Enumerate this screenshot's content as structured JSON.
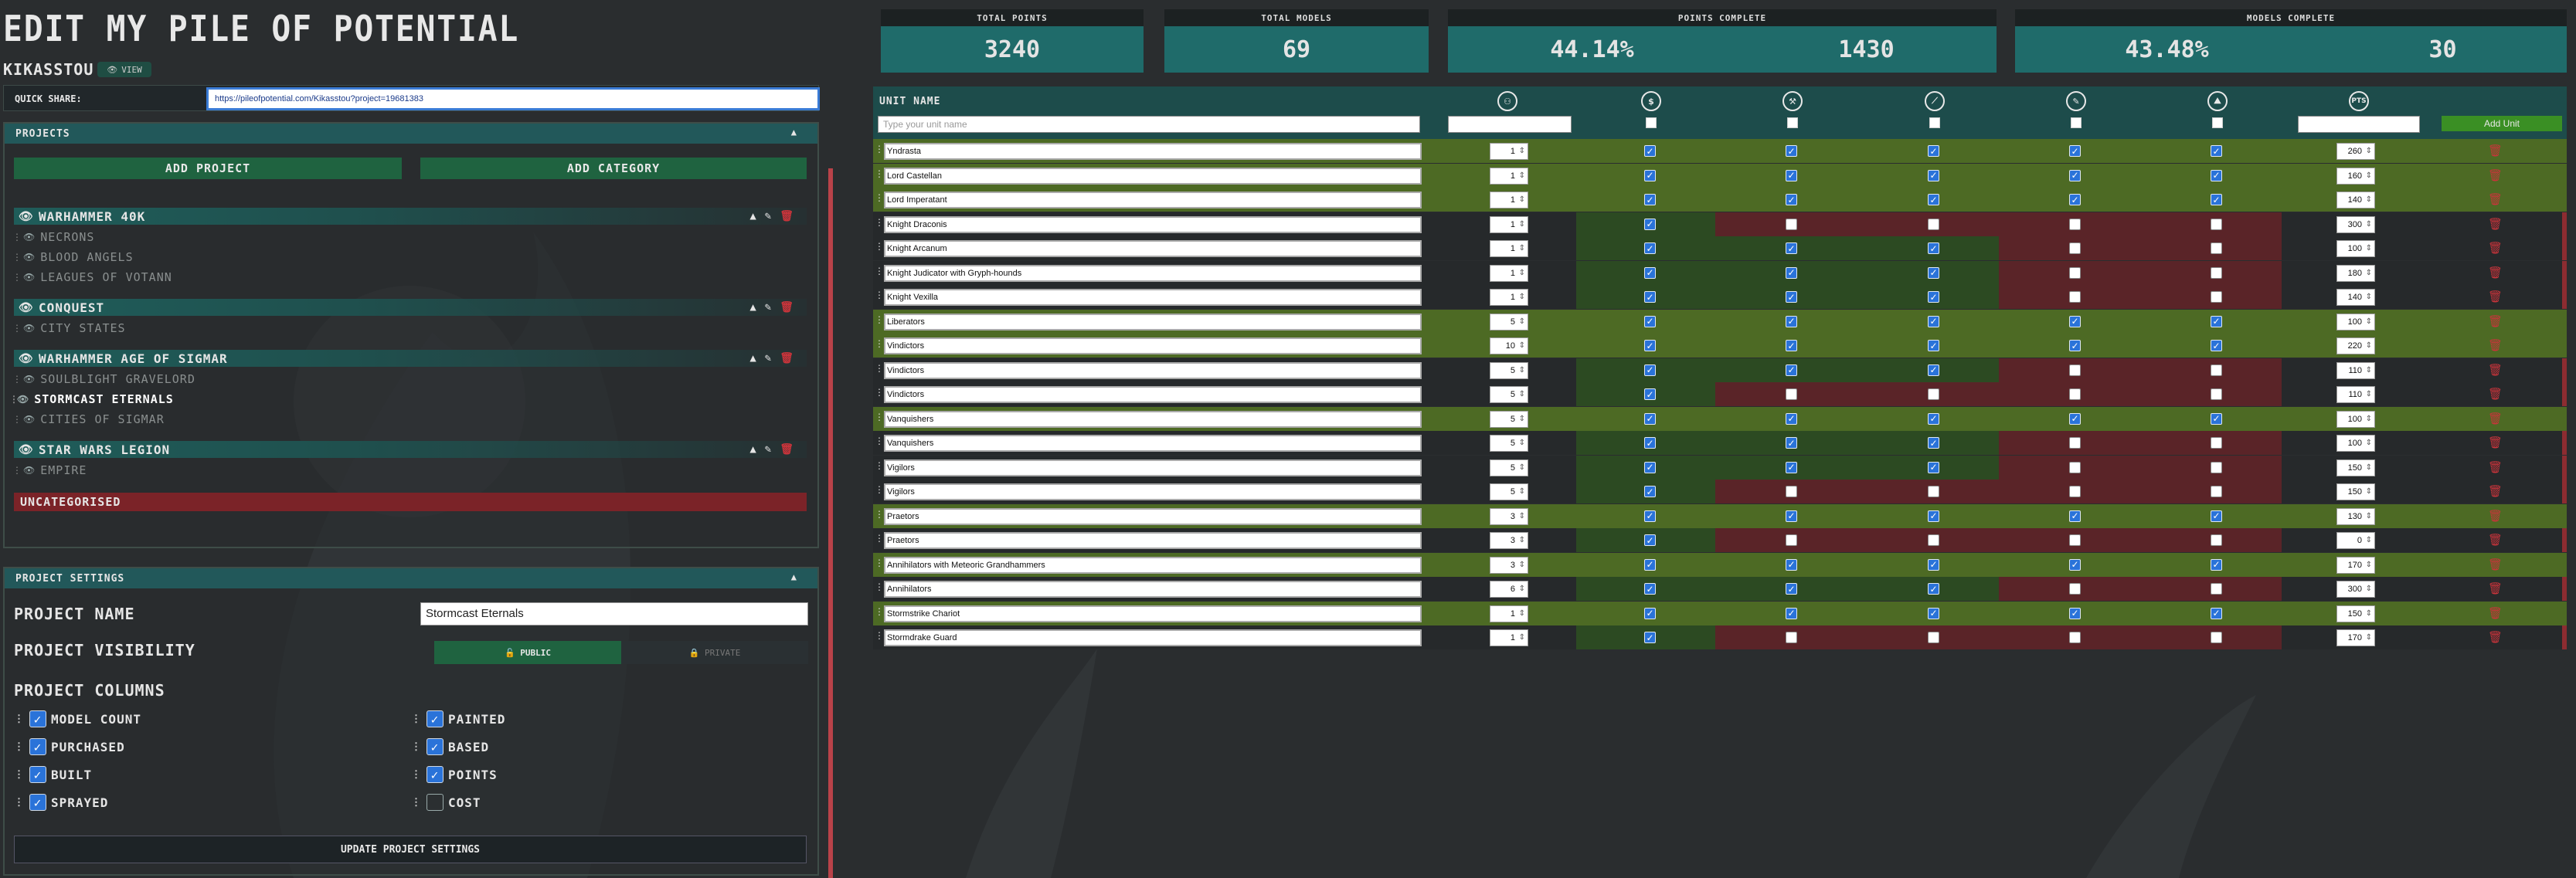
{
  "page": {
    "title": "EDIT MY PILE OF POTENTIAL",
    "username": "KIKASSTOU",
    "view_label": "VIEW",
    "quick_share_label": "QUICK SHARE:",
    "quick_share_url": "https://pileofpotential.com/Kikasstou?project=19681383"
  },
  "projects_panel": {
    "header": "PROJECTS",
    "add_project": "ADD PROJECT",
    "add_category": "ADD CATEGORY",
    "categories": [
      {
        "name": "WARHAMMER 40K",
        "projects": [
          "NECRONS",
          "BLOOD ANGELS",
          "LEAGUES OF VOTANN"
        ]
      },
      {
        "name": "CONQUEST",
        "projects": [
          "CITY STATES"
        ]
      },
      {
        "name": "WARHAMMER AGE OF SIGMAR",
        "projects": [
          "SOULBLIGHT GRAVELORD",
          "STORMCAST ETERNALS",
          "CITIES OF SIGMAR"
        ]
      },
      {
        "name": "STAR WARS LEGION",
        "projects": [
          "EMPIRE"
        ]
      }
    ],
    "uncategorised": "UNCATEGORISED"
  },
  "settings_panel": {
    "header": "PROJECT SETTINGS",
    "name_label": "PROJECT NAME",
    "name_value": "Stormcast Eternals",
    "visibility_label": "PROJECT VISIBILITY",
    "public_label": "PUBLIC",
    "private_label": "PRIVATE",
    "columns_label": "PROJECT COLUMNS",
    "columns": [
      {
        "label": "MODEL COUNT",
        "checked": true
      },
      {
        "label": "PURCHASED",
        "checked": true
      },
      {
        "label": "BUILT",
        "checked": true
      },
      {
        "label": "SPRAYED",
        "checked": true
      },
      {
        "label": "PAINTED",
        "checked": true
      },
      {
        "label": "BASED",
        "checked": true
      },
      {
        "label": "POINTS",
        "checked": true
      },
      {
        "label": "COST",
        "checked": false
      }
    ],
    "update_button": "UPDATE PROJECT SETTINGS"
  },
  "stats": {
    "total_points_label": "TOTAL POINTS",
    "total_points": "3240",
    "total_models_label": "TOTAL MODELS",
    "total_models": "69",
    "points_complete_label": "POINTS COMPLETE",
    "points_complete_pct": "44.14%",
    "points_complete_val": "1430",
    "models_complete_label": "MODELS COMPLETE",
    "models_complete_pct": "43.48%",
    "models_complete_val": "30"
  },
  "table": {
    "unit_name_header": "UNIT NAME",
    "name_placeholder": "Type your unit name",
    "add_unit": "Add Unit",
    "icons": [
      "model-count-icon",
      "purchased-icon",
      "built-icon",
      "sprayed-icon",
      "painted-icon",
      "based-icon",
      "points-icon"
    ],
    "points_icon_label": "PTS",
    "colors": {
      "complete": "#4d6a24",
      "partial": "#2c4a22",
      "incomplete": "#5a2428"
    },
    "rows": [
      {
        "name": "Yndrasta",
        "count": "1",
        "checks": [
          1,
          1,
          1,
          1,
          1
        ],
        "points": "260"
      },
      {
        "name": "Lord Castellan",
        "count": "1",
        "checks": [
          1,
          1,
          1,
          1,
          1
        ],
        "points": "160"
      },
      {
        "name": "Lord Imperatant",
        "count": "1",
        "checks": [
          1,
          1,
          1,
          1,
          1
        ],
        "points": "140"
      },
      {
        "name": "Knight Draconis",
        "count": "1",
        "checks": [
          1,
          0,
          0,
          0,
          0
        ],
        "points": "300"
      },
      {
        "name": "Knight Arcanum",
        "count": "1",
        "checks": [
          1,
          1,
          1,
          0,
          0
        ],
        "points": "100"
      },
      {
        "name": "Knight Judicator with Gryph-hounds",
        "count": "1",
        "checks": [
          1,
          1,
          1,
          0,
          0
        ],
        "points": "180"
      },
      {
        "name": "Knight Vexilla",
        "count": "1",
        "checks": [
          1,
          1,
          1,
          0,
          0
        ],
        "points": "140"
      },
      {
        "name": "Liberators",
        "count": "5",
        "checks": [
          1,
          1,
          1,
          1,
          1
        ],
        "points": "100"
      },
      {
        "name": "Vindictors",
        "count": "10",
        "checks": [
          1,
          1,
          1,
          1,
          1
        ],
        "points": "220"
      },
      {
        "name": "Vindictors",
        "count": "5",
        "checks": [
          1,
          1,
          1,
          0,
          0
        ],
        "points": "110"
      },
      {
        "name": "Vindictors",
        "count": "5",
        "checks": [
          1,
          0,
          0,
          0,
          0
        ],
        "points": "110"
      },
      {
        "name": "Vanquishers",
        "count": "5",
        "checks": [
          1,
          1,
          1,
          1,
          1
        ],
        "points": "100"
      },
      {
        "name": "Vanquishers",
        "count": "5",
        "checks": [
          1,
          1,
          1,
          0,
          0
        ],
        "points": "100"
      },
      {
        "name": "Vigilors",
        "count": "5",
        "checks": [
          1,
          1,
          1,
          0,
          0
        ],
        "points": "150"
      },
      {
        "name": "Vigilors",
        "count": "5",
        "checks": [
          1,
          0,
          0,
          0,
          0
        ],
        "points": "150"
      },
      {
        "name": "Praetors",
        "count": "3",
        "checks": [
          1,
          1,
          1,
          1,
          1
        ],
        "points": "130"
      },
      {
        "name": "Praetors",
        "count": "3",
        "checks": [
          1,
          0,
          0,
          0,
          0
        ],
        "points": "0"
      },
      {
        "name": "Annihilators with Meteoric Grandhammers",
        "count": "3",
        "checks": [
          1,
          1,
          1,
          1,
          1
        ],
        "points": "170"
      },
      {
        "name": "Annihilators",
        "count": "6",
        "checks": [
          1,
          1,
          1,
          0,
          0
        ],
        "points": "300"
      },
      {
        "name": "Stormstrike Chariot",
        "count": "1",
        "checks": [
          1,
          1,
          1,
          1,
          1
        ],
        "points": "150"
      },
      {
        "name": "Stormdrake Guard",
        "count": "1",
        "checks": [
          1,
          0,
          0,
          0,
          0
        ],
        "points": "170"
      }
    ]
  }
}
